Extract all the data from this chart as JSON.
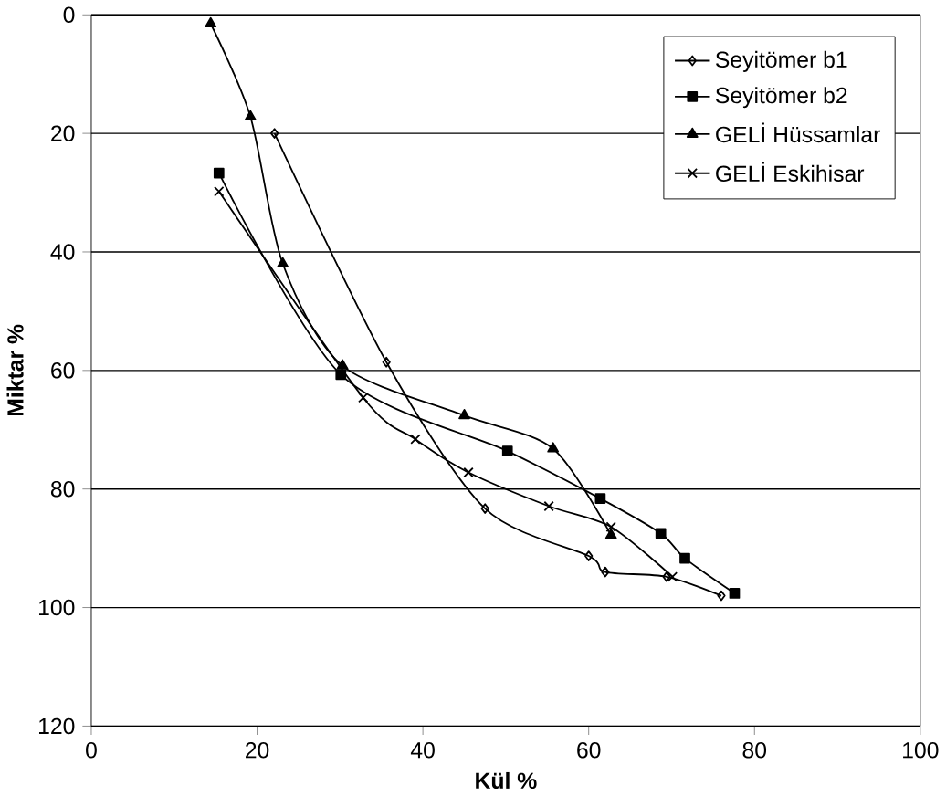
{
  "chart_data": {
    "type": "line",
    "xlabel": "Kül %",
    "ylabel": "Miktar %",
    "xlim": [
      0,
      100
    ],
    "xticks": [
      0,
      20,
      40,
      60,
      80,
      100
    ],
    "ylim": [
      120,
      0
    ],
    "yticks": [
      0,
      20,
      40,
      60,
      80,
      100,
      120
    ],
    "grid": "y",
    "legend": "top right",
    "series": [
      {
        "name": "Seyitömer b1",
        "color": "#000000",
        "marker": "diamond",
        "x": [
          22.1,
          35.6,
          47.5,
          60,
          62,
          69.4,
          76
        ],
        "values": [
          20,
          58.6,
          83.3,
          91.3,
          94,
          94.8,
          98
        ]
      },
      {
        "name": "Seyitömer b2",
        "color": "#000000",
        "marker": "square",
        "x": [
          15.4,
          30.1,
          50.2,
          61.4,
          68.7,
          71.6,
          77.6
        ],
        "values": [
          26.7,
          60.7,
          73.6,
          81.6,
          87.5,
          91.7,
          97.6
        ]
      },
      {
        "name": "GELİ Hüssamlar",
        "color": "#000000",
        "marker": "triangle",
        "x": [
          14.4,
          19.2,
          23.1,
          30.3,
          45,
          55.7,
          62.7
        ],
        "values": [
          1.5,
          17.2,
          42,
          59.2,
          67.6,
          73.2,
          87.8
        ]
      },
      {
        "name": "GELİ Eskihisar",
        "color": "#000000",
        "marker": "cross",
        "x": [
          15.4,
          32.8,
          39.1,
          45.5,
          55.2,
          62.7,
          70.1
        ],
        "values": [
          29.8,
          64.6,
          71.6,
          77.2,
          82.9,
          86.4,
          94.8
        ]
      }
    ]
  }
}
